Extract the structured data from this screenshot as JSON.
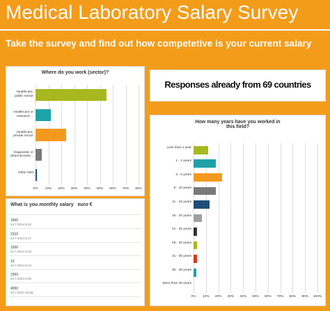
{
  "header": {
    "title": "Medical Laboratory Salary Survey",
    "subtitle": "Take the survey and find out how competetive is your current salary"
  },
  "banner": {
    "text": "Responses already from 69 countries"
  },
  "chart_data": [
    {
      "type": "hbar",
      "title": "Where do you work (sector)?",
      "categories": [
        "Healthcare, public sector",
        "Healthcare or research,...",
        "Healthcare, private sector",
        "Diagnostic or pharmaceutic...",
        "Other field"
      ],
      "values": [
        55,
        12,
        24,
        5,
        1
      ],
      "colors": [
        "#a8b820",
        "#1ea2a8",
        "#f39a1e",
        "#7a7a7a",
        "#1f4e79"
      ],
      "xlim": [
        0,
        80
      ],
      "xticks": [
        {
          "value": 0,
          "label": "0%"
        },
        {
          "value": 10,
          "label": "10%"
        },
        {
          "value": 20,
          "label": "20%"
        },
        {
          "value": 30,
          "label": "30%"
        },
        {
          "value": 40,
          "label": "40%"
        },
        {
          "value": 50,
          "label": "50%"
        },
        {
          "value": 60,
          "label": "60%"
        },
        {
          "value": 70,
          "label": "70%"
        },
        {
          "value": 80,
          "label": "80%"
        }
      ],
      "grid": true
    },
    {
      "type": "hbar",
      "title": "How many years have you worked in this field?",
      "categories": [
        "Less than 1 year",
        "1 - 2 years",
        "3 - 5 years",
        "6 - 10 years",
        "11 - 15 years",
        "16 - 20 years",
        "21 - 25 years",
        "26 - 30 years",
        "31 - 35 years",
        "36 - 40 years",
        "More than 40 years"
      ],
      "values": [
        12,
        18,
        23,
        18,
        13,
        7,
        3,
        3,
        3,
        2,
        0
      ],
      "colors": [
        "#a8b820",
        "#1ea2a8",
        "#f39a1e",
        "#7a7a7a",
        "#1f4e79",
        "#a0a0a0",
        "#333333",
        "#a8b820",
        "#d9381e",
        "#1ea2a8",
        "#7a7a7a"
      ],
      "xlim": [
        0,
        100
      ],
      "xticks": [
        {
          "value": 0,
          "label": "0%"
        },
        {
          "value": 10,
          "label": "10%"
        },
        {
          "value": 20,
          "label": "20%"
        },
        {
          "value": 30,
          "label": "30%"
        },
        {
          "value": 40,
          "label": "40%"
        },
        {
          "value": 50,
          "label": "50%"
        },
        {
          "value": 60,
          "label": "60%"
        },
        {
          "value": 70,
          "label": "70%"
        },
        {
          "value": 80,
          "label": "80%"
        },
        {
          "value": 90,
          "label": "90%"
        },
        {
          "value": 100,
          "label": "100%"
        }
      ],
      "grid": true
    }
  ],
  "table": {
    "title": "What is you monthly salary   euro €",
    "rows": [
      [
        "1600",
        "24.7.2014 8.22"
      ],
      [
        "2310",
        "24.7.2014 8.17"
      ],
      [
        "1500",
        "24.7.2014 8.16"
      ],
      [
        "10",
        "24.7.2014 8.13"
      ],
      [
        "1500",
        "24.7.2014 6.58"
      ],
      [
        "4000",
        "23.7.2014 23.58"
      ]
    ]
  }
}
